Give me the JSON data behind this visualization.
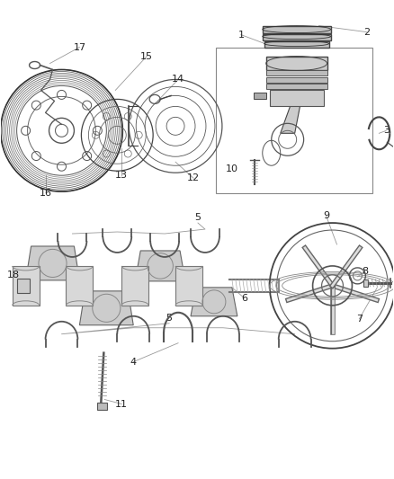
{
  "background": "#ffffff",
  "figw": 4.38,
  "figh": 5.33,
  "dpi": 100,
  "lc": "#555555",
  "tc": "#333333"
}
